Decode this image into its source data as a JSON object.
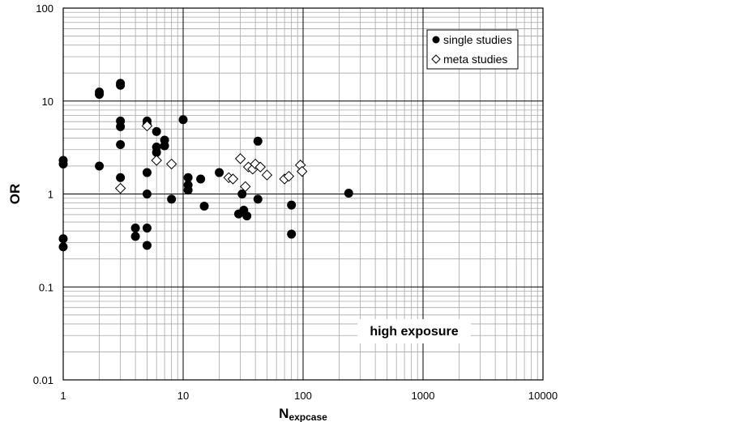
{
  "chart_data": {
    "type": "scatter",
    "x_scale": "log",
    "y_scale": "log",
    "xlim": [
      1,
      10000
    ],
    "ylim": [
      0.01,
      100
    ],
    "grid": true,
    "x_ticks": [
      "1",
      "10",
      "100",
      "1000",
      "10000"
    ],
    "y_ticks": [
      "0.01",
      "0.1",
      "1",
      "10",
      "100"
    ],
    "xlabel_main": "N",
    "xlabel_sub": "expcase",
    "ylabel": "OR",
    "legend_position": "top-right",
    "annotation": "high exposure",
    "series": [
      {
        "name": "single studies",
        "marker": "filled-circle",
        "color": "#000000",
        "points": [
          [
            1,
            2.1
          ],
          [
            1,
            2.3
          ],
          [
            1,
            0.33
          ],
          [
            1,
            0.27
          ],
          [
            2,
            12.5
          ],
          [
            2,
            11.8
          ],
          [
            2,
            2.0
          ],
          [
            3,
            15.5
          ],
          [
            3,
            14.8
          ],
          [
            3,
            6.1
          ],
          [
            3,
            5.3
          ],
          [
            3,
            3.4
          ],
          [
            3,
            1.5
          ],
          [
            4,
            0.43
          ],
          [
            4,
            0.35
          ],
          [
            5,
            6.1
          ],
          [
            5,
            5.6
          ],
          [
            5,
            1.7
          ],
          [
            5,
            1.0
          ],
          [
            5,
            0.43
          ],
          [
            5,
            0.28
          ],
          [
            6,
            4.7
          ],
          [
            6,
            3.2
          ],
          [
            6,
            2.8
          ],
          [
            7,
            3.8
          ],
          [
            7,
            3.3
          ],
          [
            8,
            0.88
          ],
          [
            10,
            6.3
          ],
          [
            11,
            1.5
          ],
          [
            11,
            1.25
          ],
          [
            11,
            1.1
          ],
          [
            14,
            1.45
          ],
          [
            15,
            0.74
          ],
          [
            20,
            1.7
          ],
          [
            29,
            0.61
          ],
          [
            31,
            1.0
          ],
          [
            32,
            0.67
          ],
          [
            34,
            0.58
          ],
          [
            42,
            3.7
          ],
          [
            42,
            0.88
          ],
          [
            80,
            0.76
          ],
          [
            80,
            0.37
          ],
          [
            240,
            1.02
          ]
        ]
      },
      {
        "name": "meta studies",
        "marker": "open-diamond",
        "color": "#000000",
        "points": [
          [
            3,
            1.15
          ],
          [
            5,
            5.4
          ],
          [
            6,
            2.3
          ],
          [
            8,
            2.1
          ],
          [
            24,
            1.5
          ],
          [
            26,
            1.45
          ],
          [
            30,
            2.4
          ],
          [
            33,
            1.2
          ],
          [
            35,
            1.95
          ],
          [
            38,
            1.85
          ],
          [
            40,
            2.1
          ],
          [
            44,
            1.95
          ],
          [
            50,
            1.6
          ],
          [
            70,
            1.45
          ],
          [
            76,
            1.55
          ],
          [
            95,
            2.05
          ],
          [
            98,
            1.75
          ]
        ]
      }
    ]
  }
}
